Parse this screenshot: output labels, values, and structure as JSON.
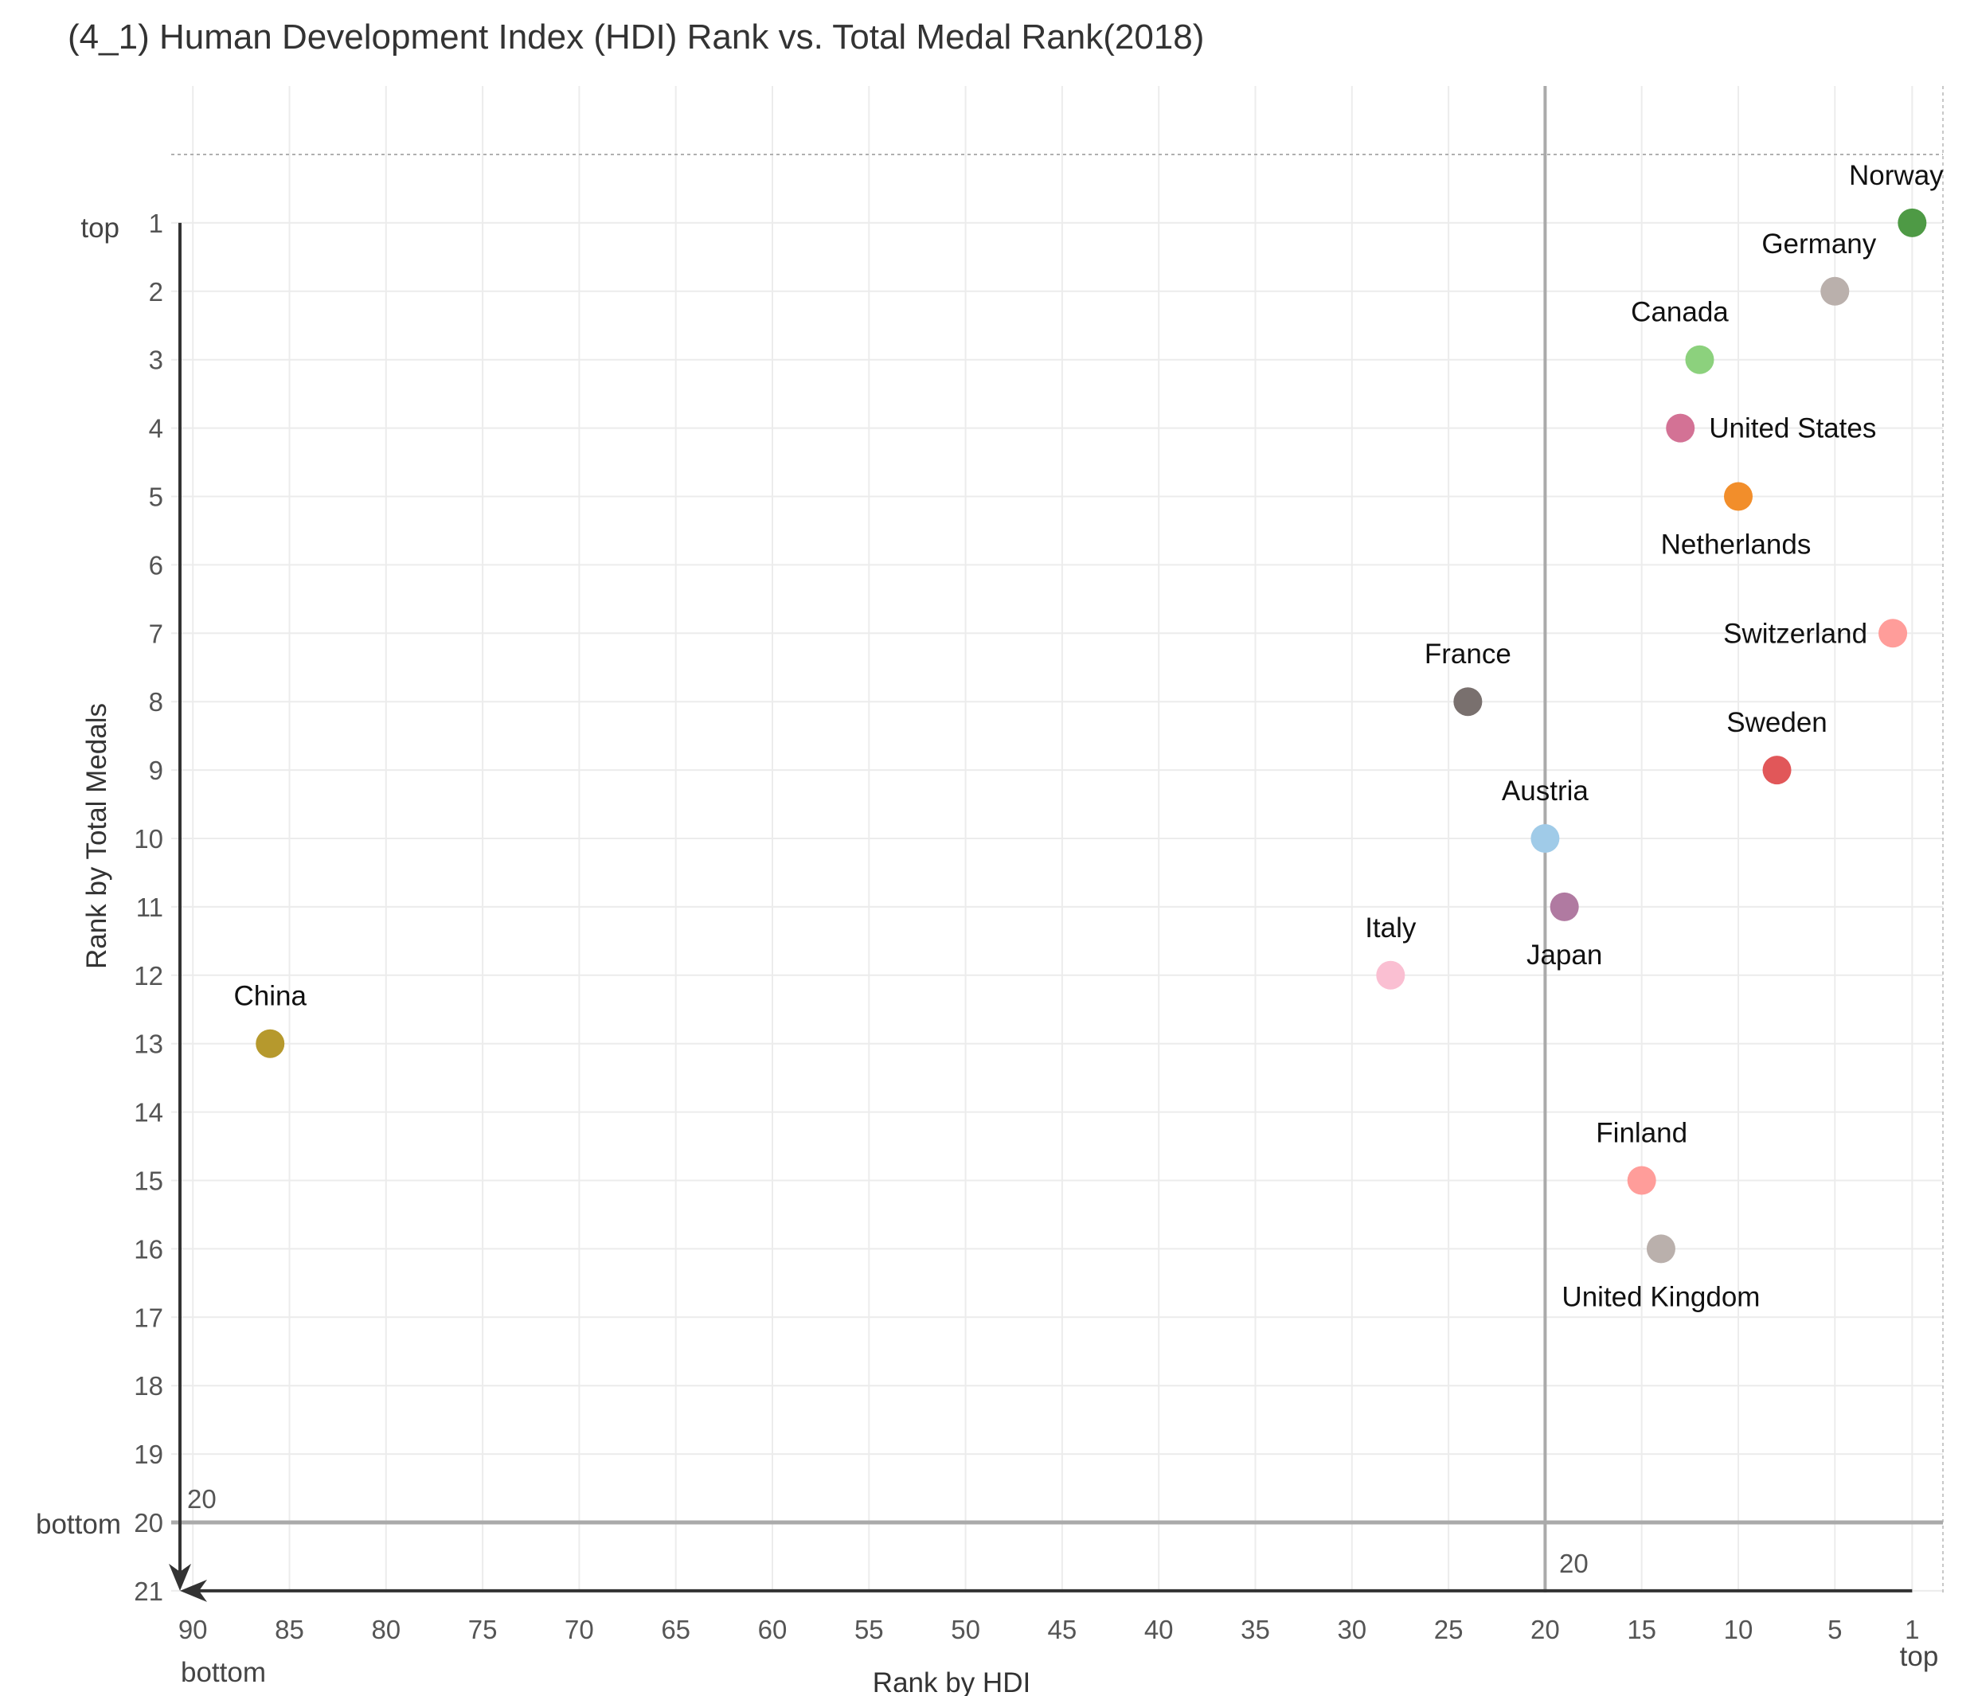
{
  "chart_data": {
    "type": "scatter",
    "title": "(4_1) Human Development Index (HDI) Rank vs. Total Medal Rank(2018)",
    "xlabel": "Rank by HDI",
    "ylabel": "Rank by Total Medals",
    "xlim": [
      91,
      0
    ],
    "ylim": [
      21,
      0
    ],
    "x_ticks": [
      90,
      85,
      80,
      75,
      70,
      65,
      60,
      55,
      50,
      45,
      40,
      35,
      30,
      25,
      20,
      15,
      10,
      5,
      1
    ],
    "y_ticks": [
      1,
      2,
      3,
      4,
      5,
      6,
      7,
      8,
      9,
      10,
      11,
      12,
      13,
      14,
      15,
      16,
      17,
      18,
      19,
      20,
      21
    ],
    "x_end_labels": {
      "low": "bottom",
      "high": "top"
    },
    "y_end_labels": {
      "high": "top",
      "low": "bottom"
    },
    "reference_lines": {
      "x": 20,
      "y": 20,
      "x_label": "20",
      "y_label": "20"
    },
    "grid": true,
    "points": [
      {
        "label": "Norway",
        "x": 1,
        "y": 1,
        "color": "#4e9a45"
      },
      {
        "label": "Germany",
        "x": 5,
        "y": 2,
        "color": "#bab0ac"
      },
      {
        "label": "Canada",
        "x": 12,
        "y": 3,
        "color": "#8cd17d"
      },
      {
        "label": "United States",
        "x": 13,
        "y": 4,
        "color": "#d37295"
      },
      {
        "label": "Netherlands",
        "x": 10,
        "y": 5,
        "color": "#f28e2b"
      },
      {
        "label": "Switzerland",
        "x": 2,
        "y": 7,
        "color": "#ff9d9a"
      },
      {
        "label": "France",
        "x": 24,
        "y": 8,
        "color": "#79706e"
      },
      {
        "label": "Sweden",
        "x": 8,
        "y": 9,
        "color": "#e15759"
      },
      {
        "label": "Austria",
        "x": 20,
        "y": 10,
        "color": "#a0cbe8"
      },
      {
        "label": "Japan",
        "x": 19,
        "y": 11,
        "color": "#b07aa1"
      },
      {
        "label": "Italy",
        "x": 28,
        "y": 12,
        "color": "#fabfd2"
      },
      {
        "label": "China",
        "x": 86,
        "y": 13,
        "color": "#b6992d"
      },
      {
        "label": "Finland",
        "x": 15,
        "y": 15,
        "color": "#ff9d9a"
      },
      {
        "label": "United Kingdom",
        "x": 14,
        "y": 16,
        "color": "#bab0ac"
      }
    ]
  }
}
